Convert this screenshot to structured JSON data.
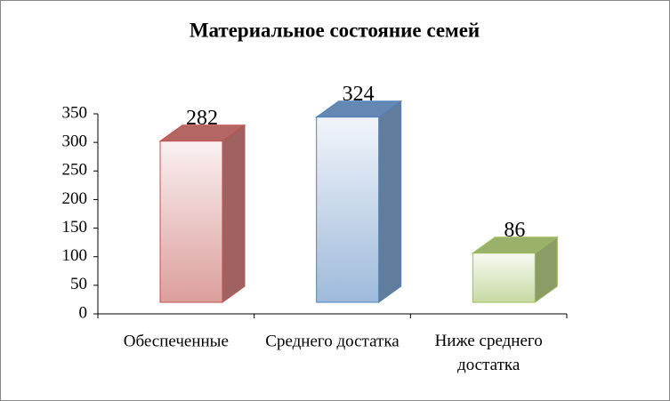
{
  "chart_data": {
    "type": "bar3d",
    "title": "Материальное состояние семей",
    "categories": [
      "Обеспеченные",
      "Среднего достатка",
      "Ниже среднего достатка"
    ],
    "values": [
      282,
      324,
      86
    ],
    "colors": [
      "#c0504d",
      "#4f81bd",
      "#9bbb59"
    ],
    "ylim": [
      0,
      350
    ],
    "yticks": [
      0,
      50,
      100,
      150,
      200,
      250,
      300,
      350
    ]
  }
}
